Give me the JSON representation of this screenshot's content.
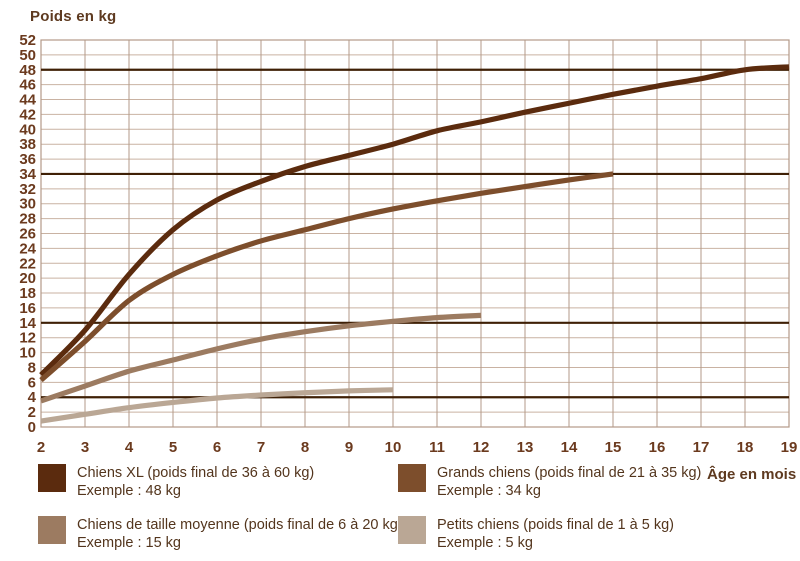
{
  "title": "Poids en kg",
  "chart_data": {
    "type": "line",
    "title": "Poids en kg",
    "xlabel": "Âge en mois",
    "ylabel": "Poids en kg",
    "xlim": [
      2,
      19
    ],
    "ylim": [
      0,
      52
    ],
    "grid": true,
    "legend_position": "bottom",
    "x_ticks": [
      2,
      3,
      4,
      5,
      6,
      7,
      8,
      9,
      10,
      11,
      12,
      13,
      14,
      15,
      16,
      17,
      18,
      19
    ],
    "y_ticks": [
      0,
      2,
      4,
      6,
      8,
      10,
      12,
      14,
      16,
      18,
      20,
      22,
      24,
      26,
      28,
      30,
      32,
      34,
      36,
      38,
      40,
      42,
      44,
      46,
      48,
      50,
      52
    ],
    "reference_lines": [
      48,
      34,
      14,
      4
    ],
    "series": [
      {
        "name": "Chiens XL",
        "color": "#5b2b0e",
        "x": [
          2,
          3,
          4,
          5,
          6,
          7,
          8,
          9,
          10,
          11,
          12,
          13,
          14,
          15,
          16,
          17,
          18,
          19
        ],
        "values": [
          7,
          13,
          20.5,
          26.5,
          30.5,
          33,
          35,
          36.5,
          38,
          39.8,
          41,
          42.3,
          43.5,
          44.7,
          45.8,
          46.8,
          48,
          48.4
        ]
      },
      {
        "name": "Grands chiens",
        "color": "#7d4e2c",
        "x": [
          2,
          3,
          4,
          5,
          6,
          7,
          8,
          9,
          10,
          11,
          12,
          13,
          14,
          15
        ],
        "values": [
          6.3,
          11.5,
          17,
          20.5,
          23,
          25,
          26.5,
          28,
          29.3,
          30.4,
          31.4,
          32.3,
          33.2,
          34
        ]
      },
      {
        "name": "Chiens de taille moyenne",
        "color": "#9c7b61",
        "x": [
          2,
          3,
          4,
          5,
          6,
          7,
          8,
          9,
          10,
          11,
          12
        ],
        "values": [
          3.5,
          5.5,
          7.5,
          9,
          10.5,
          11.8,
          12.8,
          13.6,
          14.2,
          14.7,
          15
        ]
      },
      {
        "name": "Petits chiens",
        "color": "#baa795",
        "x": [
          2,
          3,
          4,
          5,
          6,
          7,
          8,
          9,
          10
        ],
        "values": [
          0.8,
          1.7,
          2.6,
          3.3,
          3.9,
          4.3,
          4.6,
          4.85,
          5
        ]
      }
    ]
  },
  "legend": {
    "items": [
      {
        "label": "Chiens XL (poids final de 36 à 60 kg)",
        "example": "Exemple : 48 kg",
        "color": "#5b2b0e"
      },
      {
        "label": "Grands chiens (poids final de 21 à 35 kg)",
        "example": "Exemple : 34 kg",
        "color": "#7d4e2c"
      },
      {
        "label": "Chiens de taille moyenne (poids final de 6 à 20 kg)",
        "example": "Exemple : 15 kg",
        "color": "#9c7b61"
      },
      {
        "label": "Petits chiens (poids final de 1 à 5 kg)",
        "example": "Exemple : 5 kg",
        "color": "#baa795"
      }
    ]
  },
  "colors": {
    "grid_horizontal": "#c9b2a2",
    "grid_vertical": "#b39a88",
    "plot_border": "#b39a88",
    "reference_line": "#3f2006",
    "tick_text": "#6b3a1e",
    "title_text": "#5e3a20",
    "legend_text": "#53351d",
    "background": "#ffffff"
  }
}
